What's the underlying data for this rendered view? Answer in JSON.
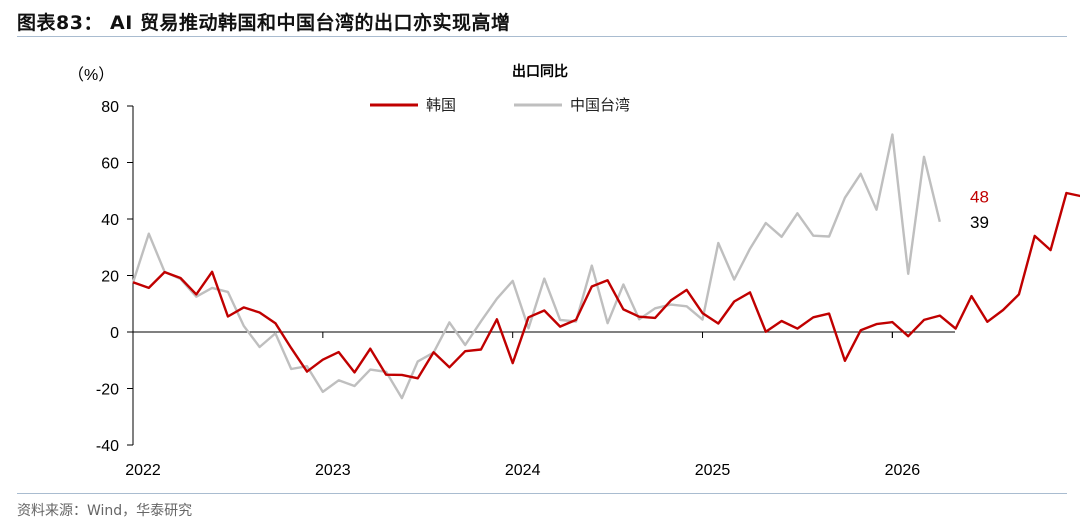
{
  "figure": {
    "title": "图表83： AI 贸易推动韩国和中国台湾的出口亦实现高增",
    "source": "资料来源：Wind，华泰研究"
  },
  "chart_data": {
    "type": "line",
    "title": "出口同比",
    "ylabel": "（%）",
    "ylim": [
      -40,
      80
    ],
    "yticks": [
      "80",
      "60",
      "40",
      "20",
      "0",
      "-20",
      "-40"
    ],
    "yticks_values": [
      80,
      60,
      40,
      20,
      0,
      -20,
      -40
    ],
    "xticks": [
      "2022",
      "2023",
      "2024",
      "2025",
      "2026"
    ],
    "x_start": "2022-01",
    "legend_position": "top-center",
    "grid": false,
    "series": [
      {
        "name": "韩国",
        "color": "#c00000",
        "end_label": "48",
        "values": [
          17.6,
          15.6,
          21.2,
          19.1,
          13.3,
          21.3,
          5.5,
          8.7,
          6.9,
          3.1,
          -5.7,
          -14.0,
          -9.8,
          -7.1,
          -14.3,
          -5.9,
          -15.1,
          -15.2,
          -16.4,
          -7.2,
          -12.5,
          -6.8,
          -6.2,
          4.5,
          -11.0,
          5.2,
          7.6,
          1.9,
          4.3,
          16.1,
          18.3,
          8.0,
          5.4,
          5.0,
          11.2,
          14.9,
          6.7,
          3.0,
          10.8,
          14.0,
          0.1,
          3.9,
          1.2,
          5.2,
          6.5,
          -10.2,
          0.6,
          2.8,
          3.5,
          -1.5,
          4.3,
          5.8,
          1.2,
          12.7,
          3.6,
          7.8,
          13.3,
          34.0,
          29.0,
          49.2,
          48.0
        ]
      },
      {
        "name": "中国台湾",
        "color": "#bfbfbf",
        "end_label": "39",
        "values": [
          17.5,
          34.8,
          21.3,
          18.8,
          12.5,
          15.6,
          14.2,
          2.2,
          -5.3,
          -0.5,
          -13.1,
          -12.1,
          -21.2,
          -17.1,
          -19.1,
          -13.3,
          -14.1,
          -23.4,
          -10.4,
          -7.3,
          3.4,
          -4.6,
          3.8,
          11.8,
          18.1,
          1.3,
          18.9,
          4.3,
          3.7,
          23.5,
          3.1,
          16.8,
          4.5,
          8.4,
          9.7,
          9.1,
          4.4,
          31.5,
          18.6,
          29.5,
          38.6,
          33.7,
          42.0,
          34.1,
          33.8,
          47.5,
          56.0,
          43.3,
          69.9,
          20.6,
          62.0,
          39.0
        ]
      }
    ]
  }
}
